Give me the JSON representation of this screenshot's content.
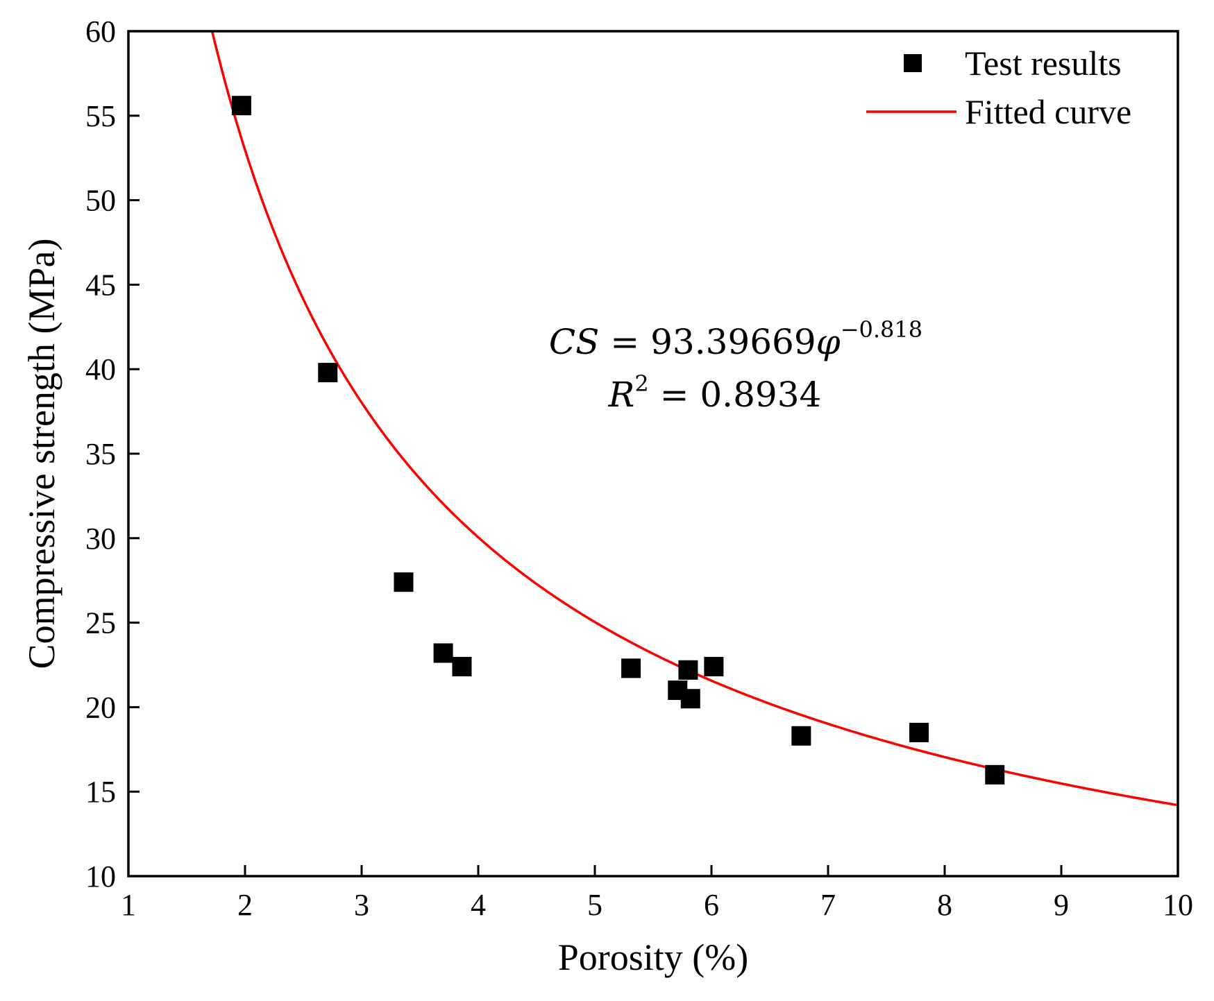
{
  "chart_data": {
    "type": "scatter",
    "xlabel": "Porosity (%)",
    "ylabel": "Compressive strength (MPa)",
    "xlim": [
      1,
      10
    ],
    "ylim": [
      10,
      60
    ],
    "xticks": [
      "1",
      "2",
      "3",
      "4",
      "5",
      "6",
      "7",
      "8",
      "9",
      "10"
    ],
    "yticks": [
      "10",
      "15",
      "20",
      "25",
      "30",
      "35",
      "40",
      "45",
      "50",
      "55",
      "60"
    ],
    "grid": false,
    "legend_position": "top-right",
    "series": [
      {
        "name": "Test results",
        "marker": "square",
        "color": "#000000",
        "points": [
          {
            "x": 1.97,
            "y": 55.6
          },
          {
            "x": 2.71,
            "y": 39.8
          },
          {
            "x": 3.36,
            "y": 27.4
          },
          {
            "x": 3.7,
            "y": 23.2
          },
          {
            "x": 3.86,
            "y": 22.4
          },
          {
            "x": 5.31,
            "y": 22.3
          },
          {
            "x": 5.71,
            "y": 21.0
          },
          {
            "x": 5.8,
            "y": 22.2
          },
          {
            "x": 5.82,
            "y": 20.5
          },
          {
            "x": 6.02,
            "y": 22.4
          },
          {
            "x": 6.77,
            "y": 18.3
          },
          {
            "x": 7.78,
            "y": 18.5
          },
          {
            "x": 8.43,
            "y": 16.0
          }
        ]
      },
      {
        "name": "Fitted curve",
        "color": "#ff0000",
        "equation": {
          "coefficient": 93.39669,
          "exponent": -0.818
        }
      }
    ],
    "annotations": {
      "equation_lhs": "CS",
      "equation_equals": " = ",
      "equation_coefficient": "93.39669",
      "equation_variable": "φ",
      "equation_exponent": "−0.818",
      "r2_symbol": "R",
      "r2_power": "2",
      "r2_equals": " = ",
      "r2_value": "0.8934"
    }
  }
}
